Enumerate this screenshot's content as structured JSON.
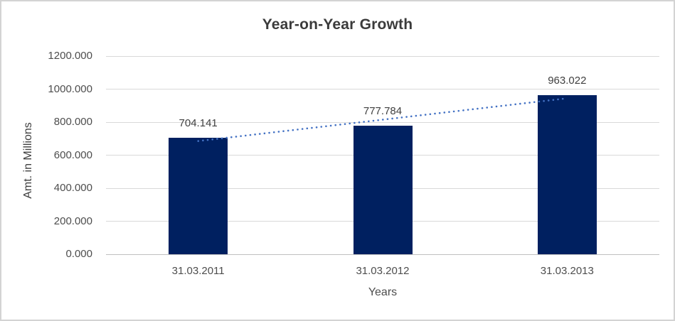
{
  "chart_data": {
    "type": "bar",
    "title": "Year-on-Year Growth",
    "xlabel": "Years",
    "ylabel": "Amt. in Millions",
    "categories": [
      "31.03.2011",
      "31.03.2012",
      "31.03.2013"
    ],
    "values": [
      704.141,
      777.784,
      963.022
    ],
    "value_labels": [
      "704.141",
      "777.784",
      "963.022"
    ],
    "ylim": [
      0,
      1200
    ],
    "ytick_step": 200,
    "ytick_labels": [
      "0.000",
      "200.000",
      "400.000",
      "600.000",
      "800.000",
      "1000.000",
      "1200.000"
    ],
    "grid": true,
    "legend": "none",
    "bar_color": "#002060",
    "gridline_color": "#d9d9d9",
    "trendline": {
      "type": "linear",
      "style": "dotted",
      "color": "#4472C4"
    }
  }
}
